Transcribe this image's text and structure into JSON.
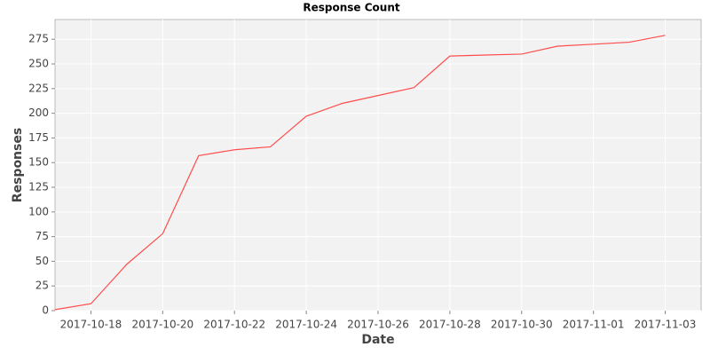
{
  "chart_data": {
    "type": "line",
    "title": "Response Count",
    "x_label": "Date",
    "y_label": "Responses",
    "x": [
      "2017-10-17",
      "2017-10-18",
      "2017-10-19",
      "2017-10-20",
      "2017-10-21",
      "2017-10-22",
      "2017-10-23",
      "2017-10-24",
      "2017-10-25",
      "2017-10-26",
      "2017-10-27",
      "2017-10-28",
      "2017-10-29",
      "2017-10-30",
      "2017-10-31",
      "2017-11-01",
      "2017-11-02",
      "2017-11-03"
    ],
    "series": [
      {
        "name": "Responses",
        "color": "#ff4d4d",
        "values": [
          1,
          7,
          47,
          78,
          157,
          163,
          166,
          197,
          210,
          218,
          226,
          258,
          259,
          260,
          268,
          270,
          272,
          279
        ]
      }
    ],
    "xlim": [
      "2017-10-17",
      "2017-11-04"
    ],
    "xticks": [
      "2017-10-18",
      "2017-10-20",
      "2017-10-22",
      "2017-10-24",
      "2017-10-26",
      "2017-10-28",
      "2017-10-30",
      "2017-11-01",
      "2017-11-03"
    ],
    "ylim": [
      0,
      295
    ],
    "yticks": [
      0,
      25,
      50,
      75,
      100,
      125,
      150,
      175,
      200,
      225,
      250,
      275
    ],
    "grid": true
  }
}
